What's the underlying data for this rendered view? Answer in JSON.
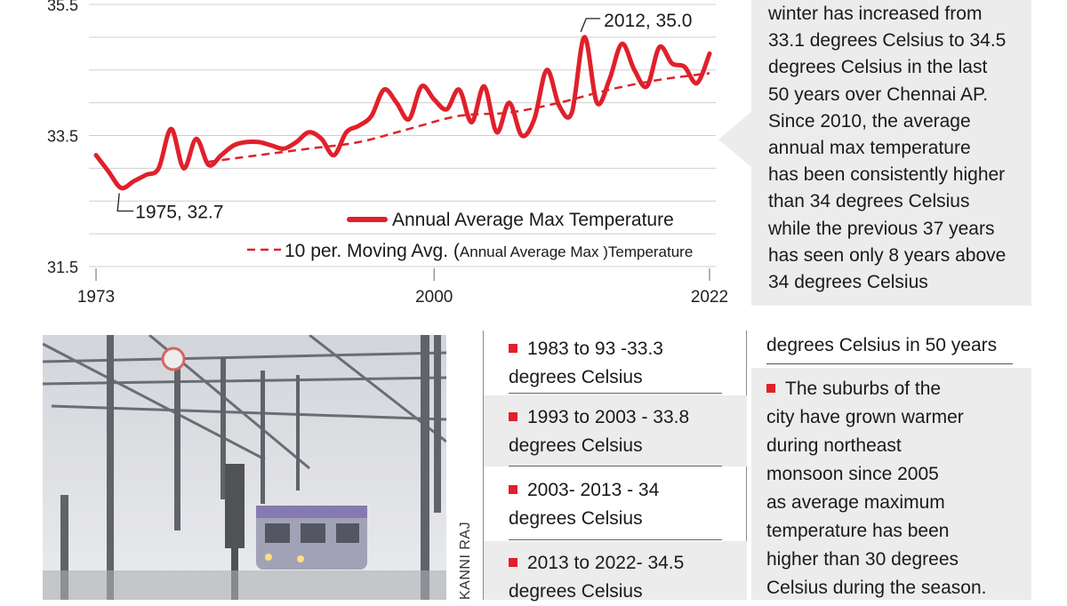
{
  "chart_data": {
    "type": "line",
    "x": [
      1973,
      1974,
      1975,
      1976,
      1977,
      1978,
      1979,
      1980,
      1981,
      1982,
      1983,
      1984,
      1985,
      1986,
      1987,
      1988,
      1989,
      1990,
      1991,
      1992,
      1993,
      1994,
      1995,
      1996,
      1997,
      1998,
      1999,
      2000,
      2001,
      2002,
      2003,
      2004,
      2005,
      2006,
      2007,
      2008,
      2009,
      2010,
      2011,
      2012,
      2013,
      2014,
      2015,
      2016,
      2017,
      2018,
      2019,
      2020,
      2021,
      2022
    ],
    "series": [
      {
        "name": "Annual Average Max Temperature",
        "style": "solid",
        "color": "#e0202b",
        "values": [
          33.2,
          32.95,
          32.7,
          32.8,
          32.9,
          33.0,
          33.6,
          33.0,
          33.45,
          33.05,
          33.2,
          33.35,
          33.4,
          33.4,
          33.35,
          33.3,
          33.4,
          33.55,
          33.45,
          33.2,
          33.55,
          33.65,
          33.8,
          34.2,
          34.0,
          33.75,
          34.25,
          34.05,
          33.9,
          34.2,
          33.7,
          34.25,
          33.55,
          34.0,
          33.5,
          33.75,
          34.5,
          33.95,
          33.85,
          35.0,
          34.0,
          34.35,
          34.9,
          34.5,
          34.25,
          34.85,
          34.6,
          34.55,
          34.3,
          34.75
        ]
      },
      {
        "name": "10 per. Moving Avg. (Annual Average Max )Temperature",
        "style": "dashed",
        "color": "#e0202b",
        "x": [
          1982,
          1986,
          1990,
          1994,
          1998,
          2002,
          2006,
          2010,
          2014,
          2018,
          2022
        ],
        "values": [
          33.1,
          33.2,
          33.3,
          33.4,
          33.6,
          33.8,
          33.85,
          34.0,
          34.2,
          34.35,
          34.45
        ]
      }
    ],
    "yticks": [
      "35.5",
      "33.5",
      "31.5"
    ],
    "xticks": [
      "1973",
      "2000",
      "2022"
    ],
    "ylim": [
      31.5,
      35.5
    ],
    "xlim": [
      1973,
      2022
    ],
    "grid": "horizontal",
    "annotations": [
      {
        "label": "2012, 35.0",
        "x": 2012,
        "y": 35.0
      },
      {
        "label": "1975, 32.7",
        "x": 1975,
        "y": 32.7
      }
    ],
    "legend": {
      "solid": "Annual Average Max Temperature",
      "dashed_main": "10 per. Moving Avg. (",
      "dashed_small": "Annual Average Max",
      "dashed_end": " )Temperature",
      "placement": "bottom-right"
    }
  },
  "side_text": {
    "lines": [
      "winter has increased from",
      "33.1 degrees Celsius to 34.5",
      "degrees Celsius in the last",
      "50 years over Chennai AP.",
      "Since 2010, the average",
      "annual max temperature",
      "has been consistently higher",
      "than 34 degrees Celsius",
      "while the previous 37 years",
      "has seen only 8 years above",
      "34 degrees Celsius"
    ]
  },
  "photo_credit": "KANNI RAJ",
  "periods": [
    {
      "line1": "1983 to 93 -33.3",
      "line2": "degrees Celsius"
    },
    {
      "line1": "1993 to 2003 - 33.8",
      "line2": "degrees Celsius"
    },
    {
      "line1": "2003- 2013 - 34",
      "line2": "degrees Celsius"
    },
    {
      "line1": "2013 to 2022- 34.5",
      "line2": "degrees Celsius"
    }
  ],
  "right_column": {
    "top_line": "degrees Celsius in 50 years",
    "lines": [
      "The suburbs of the",
      "city have grown warmer",
      "during northeast",
      "monsoon since 2005",
      "as average maximum",
      "temperature has been",
      "higher than 30 degrees",
      "Celsius during the season."
    ]
  },
  "colors": {
    "accent_red": "#e0202b",
    "panel_grey": "#ececec",
    "grid": "#cfcfcf"
  }
}
